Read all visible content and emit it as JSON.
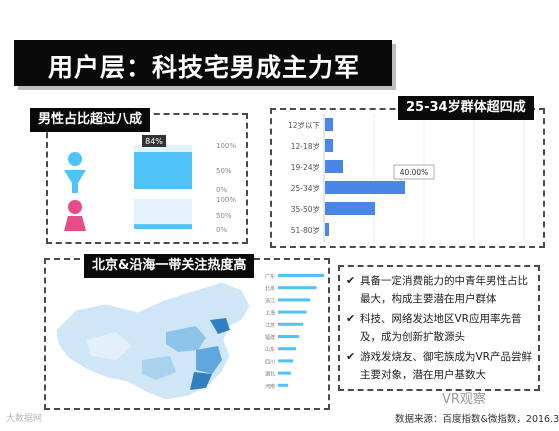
{
  "title": "用户层：科技宅男成主力军",
  "colors": {
    "accent": "#4fc3f7",
    "bar_blue": "#4a86e8",
    "female_pink": "#e84a8a",
    "male_blue": "#4fc3f7",
    "map_light": "#cfe6f7",
    "map_dark": "#2f7fc1"
  },
  "gender_panel": {
    "label": "男性占比超过八成",
    "male_icon": "male-person-icon",
    "female_icon": "female-person-icon",
    "bar_label": "84%"
  },
  "age_panel": {
    "label": "25-34岁群体超四成",
    "tooltip": "40.00%"
  },
  "region_panel": {
    "label": "北京&沿海一带关注热度高",
    "rank_labels": [
      "广东",
      "北京",
      "浙江",
      "上海",
      "江苏",
      "福建",
      "山东",
      "四川",
      "湖北",
      "河南"
    ]
  },
  "bullets": [
    {
      "mark": "✔",
      "text": "具备一定消费能力的中青年男性占比最大，构成主要潜在用户群体"
    },
    {
      "mark": "✔",
      "text": "科技、网络发达地区VR应用率先普及，成为创新扩散源头"
    },
    {
      "mark": "✔",
      "text": "游戏发烧友、御宅族成为VR产品尝鲜主要对象，潜在用户基数大"
    }
  ],
  "source": "数据来源：百度指数&微指数，2016.3",
  "watermark_left": "大数据网",
  "watermark_right": "VR观察",
  "chart_data": [
    {
      "type": "bar",
      "name": "gender",
      "categories": [
        "男",
        "女"
      ],
      "values": [
        84,
        16
      ],
      "ylim": [
        0,
        100
      ],
      "tick_labels": [
        "100%",
        "50%",
        "0%"
      ],
      "data_labels": [
        "84%"
      ]
    },
    {
      "type": "bar",
      "name": "age",
      "orientation": "horizontal",
      "categories": [
        "12岁以下",
        "12-18岁",
        "19-24岁",
        "25-34岁",
        "35-50岁",
        "51-80岁"
      ],
      "values": [
        4,
        4,
        9,
        40,
        25,
        2
      ],
      "xlim": [
        0,
        100
      ]
    },
    {
      "type": "bar",
      "name": "region-ranking",
      "orientation": "horizontal",
      "categories": [
        "广东",
        "北京",
        "浙江",
        "上海",
        "江苏",
        "福建",
        "山东",
        "四川",
        "湖北",
        "河南"
      ],
      "values": [
        100,
        84,
        70,
        62,
        55,
        46,
        39,
        33,
        28,
        22
      ],
      "xlim": [
        0,
        100
      ]
    }
  ]
}
